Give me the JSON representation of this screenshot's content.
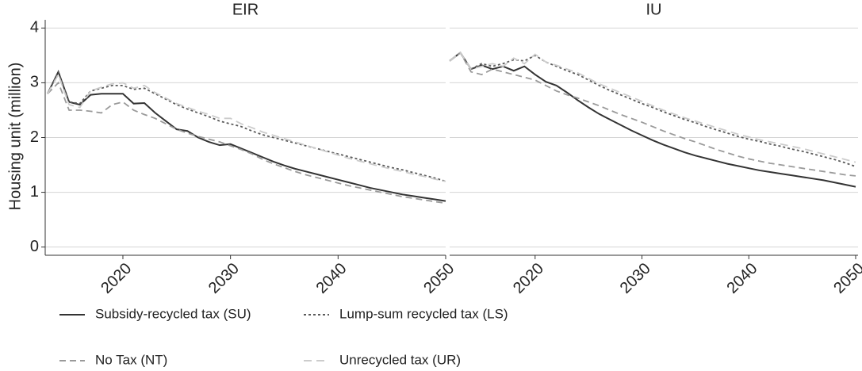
{
  "chart_data": {
    "type": "line",
    "ylabel": "Housing unit (million)",
    "ylim": [
      -0.15,
      4.15
    ],
    "yticks": [
      0,
      1,
      2,
      3,
      4
    ],
    "grid": true,
    "series": [
      {
        "name": "Subsidy-recycled tax (SU)",
        "color": "#333333",
        "dash": "solid"
      },
      {
        "name": "Lump-sum recycled tax (LS)",
        "color": "#5a5a5a",
        "dash": "dotted"
      },
      {
        "name": "No Tax (NT)",
        "color": "#9a9a9a",
        "dash": "dashed"
      },
      {
        "name": "Unrecycled tax (UR)",
        "color": "#cccccc",
        "dash": "longdash"
      }
    ],
    "facets": [
      {
        "title": "EIR",
        "xlim": [
          2013,
          2050
        ],
        "xticks": [
          2020,
          2030,
          2040,
          2050
        ],
        "x": [
          2013,
          2014,
          2015,
          2016,
          2017,
          2018,
          2019,
          2020,
          2021,
          2022,
          2023,
          2024,
          2025,
          2026,
          2027,
          2028,
          2029,
          2030,
          2031,
          2032,
          2033,
          2034,
          2035,
          2036,
          2037,
          2038,
          2039,
          2040,
          2041,
          2042,
          2043,
          2044,
          2045,
          2046,
          2047,
          2048,
          2049,
          2050
        ],
        "series": [
          {
            "values": [
              2.8,
              3.2,
              2.65,
              2.6,
              2.78,
              2.8,
              2.8,
              2.8,
              2.62,
              2.63,
              2.45,
              2.3,
              2.15,
              2.12,
              2.0,
              1.92,
              1.86,
              1.88,
              1.8,
              1.72,
              1.64,
              1.56,
              1.49,
              1.43,
              1.38,
              1.33,
              1.28,
              1.23,
              1.18,
              1.13,
              1.08,
              1.04,
              1.0,
              0.96,
              0.93,
              0.9,
              0.87,
              0.84
            ]
          },
          {
            "values": [
              2.8,
              3.2,
              2.65,
              2.62,
              2.85,
              2.9,
              2.95,
              2.95,
              2.88,
              2.9,
              2.8,
              2.7,
              2.6,
              2.52,
              2.45,
              2.38,
              2.3,
              2.25,
              2.2,
              2.12,
              2.05,
              2.0,
              1.95,
              1.9,
              1.85,
              1.8,
              1.75,
              1.7,
              1.65,
              1.6,
              1.55,
              1.5,
              1.45,
              1.41,
              1.36,
              1.31,
              1.26,
              1.2
            ]
          },
          {
            "values": [
              2.8,
              3.0,
              2.5,
              2.5,
              2.48,
              2.45,
              2.6,
              2.65,
              2.5,
              2.42,
              2.35,
              2.25,
              2.15,
              2.08,
              2.02,
              1.97,
              1.92,
              1.85,
              1.78,
              1.7,
              1.6,
              1.52,
              1.45,
              1.38,
              1.32,
              1.27,
              1.22,
              1.17,
              1.12,
              1.08,
              1.04,
              1.0,
              0.96,
              0.92,
              0.89,
              0.86,
              0.83,
              0.8
            ]
          },
          {
            "values": [
              2.8,
              3.15,
              2.6,
              2.55,
              2.85,
              2.92,
              2.98,
              3.0,
              2.9,
              2.95,
              2.82,
              2.72,
              2.62,
              2.55,
              2.48,
              2.42,
              2.35,
              2.35,
              2.25,
              2.18,
              2.1,
              2.04,
              1.98,
              1.92,
              1.86,
              1.8,
              1.74,
              1.68,
              1.62,
              1.57,
              1.52,
              1.47,
              1.42,
              1.38,
              1.33,
              1.29,
              1.24,
              1.2
            ]
          }
        ]
      },
      {
        "title": "IU",
        "xlim": [
          2012,
          2050
        ],
        "xticks": [
          2020,
          2030,
          2040,
          2050
        ],
        "x": [
          2012,
          2013,
          2014,
          2015,
          2016,
          2017,
          2018,
          2019,
          2020,
          2021,
          2022,
          2023,
          2024,
          2025,
          2026,
          2027,
          2028,
          2029,
          2030,
          2031,
          2032,
          2033,
          2034,
          2035,
          2036,
          2037,
          2038,
          2039,
          2040,
          2041,
          2042,
          2043,
          2044,
          2045,
          2046,
          2047,
          2048,
          2049,
          2050
        ],
        "series": [
          {
            "values": [
              3.4,
              3.55,
              3.25,
              3.32,
              3.25,
              3.3,
              3.22,
              3.3,
              3.15,
              3.02,
              2.95,
              2.82,
              2.68,
              2.55,
              2.43,
              2.33,
              2.23,
              2.13,
              2.04,
              1.95,
              1.87,
              1.8,
              1.73,
              1.67,
              1.62,
              1.57,
              1.52,
              1.48,
              1.44,
              1.4,
              1.37,
              1.34,
              1.31,
              1.28,
              1.25,
              1.22,
              1.18,
              1.14,
              1.1
            ]
          },
          {
            "values": [
              3.4,
              3.55,
              3.25,
              3.35,
              3.3,
              3.35,
              3.42,
              3.4,
              3.5,
              3.38,
              3.3,
              3.22,
              3.15,
              3.05,
              2.95,
              2.86,
              2.78,
              2.7,
              2.62,
              2.55,
              2.47,
              2.4,
              2.33,
              2.27,
              2.2,
              2.14,
              2.08,
              2.02,
              1.97,
              1.93,
              1.88,
              1.84,
              1.79,
              1.75,
              1.7,
              1.65,
              1.6,
              1.54,
              1.47
            ]
          },
          {
            "values": [
              3.4,
              3.55,
              3.2,
              3.15,
              3.25,
              3.2,
              3.15,
              3.1,
              3.05,
              2.95,
              2.85,
              2.78,
              2.72,
              2.65,
              2.58,
              2.5,
              2.42,
              2.35,
              2.28,
              2.2,
              2.12,
              2.05,
              1.98,
              1.92,
              1.85,
              1.78,
              1.72,
              1.66,
              1.61,
              1.57,
              1.53,
              1.5,
              1.47,
              1.44,
              1.41,
              1.38,
              1.35,
              1.32,
              1.3
            ]
          },
          {
            "values": [
              3.4,
              3.55,
              3.25,
              3.3,
              3.35,
              3.3,
              3.45,
              3.35,
              3.52,
              3.38,
              3.32,
              3.25,
              3.18,
              3.08,
              2.98,
              2.9,
              2.82,
              2.74,
              2.66,
              2.58,
              2.5,
              2.43,
              2.36,
              2.3,
              2.24,
              2.18,
              2.12,
              2.06,
              2.01,
              1.96,
              1.92,
              1.88,
              1.84,
              1.8,
              1.75,
              1.7,
              1.65,
              1.6,
              1.55
            ]
          }
        ]
      }
    ]
  }
}
